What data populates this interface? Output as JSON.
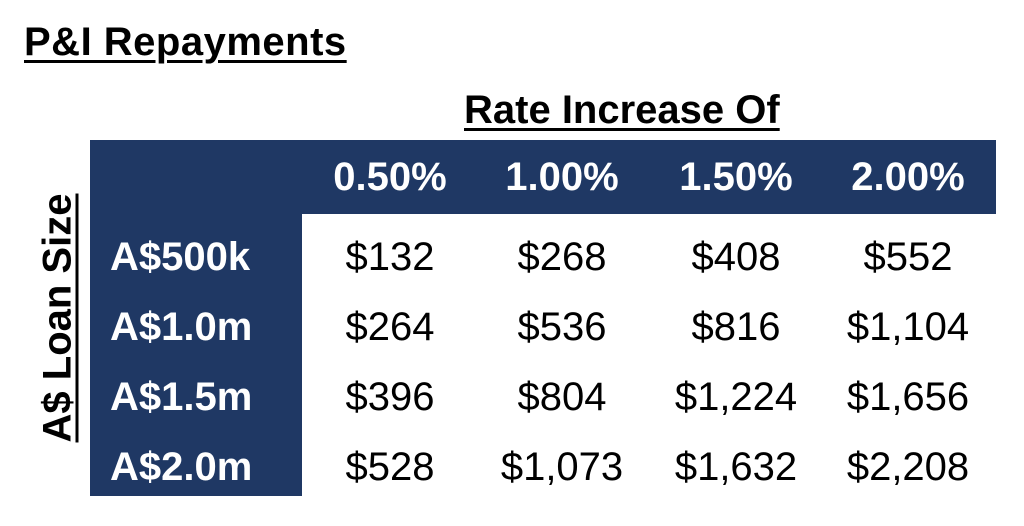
{
  "title": "P&I Repayments",
  "colors": {
    "header_fill": "#1f3864",
    "header_text": "#ffffff",
    "cell_text": "#000000"
  },
  "chart_data": {
    "type": "table",
    "title": "P&I Repayments",
    "column_header": "Rate Increase Of",
    "row_header": "A$ Loan Size",
    "columns": [
      "0.50%",
      "1.00%",
      "1.50%",
      "2.00%"
    ],
    "rows": [
      "A$500k",
      "A$1.0m",
      "A$1.5m",
      "A$2.0m"
    ],
    "cells": [
      [
        "$132",
        "$268",
        "$408",
        "$552"
      ],
      [
        "$264",
        "$536",
        "$816",
        "$1,104"
      ],
      [
        "$396",
        "$804",
        "$1,224",
        "$1,656"
      ],
      [
        "$528",
        "$1,073",
        "$1,632",
        "$2,208"
      ]
    ]
  }
}
